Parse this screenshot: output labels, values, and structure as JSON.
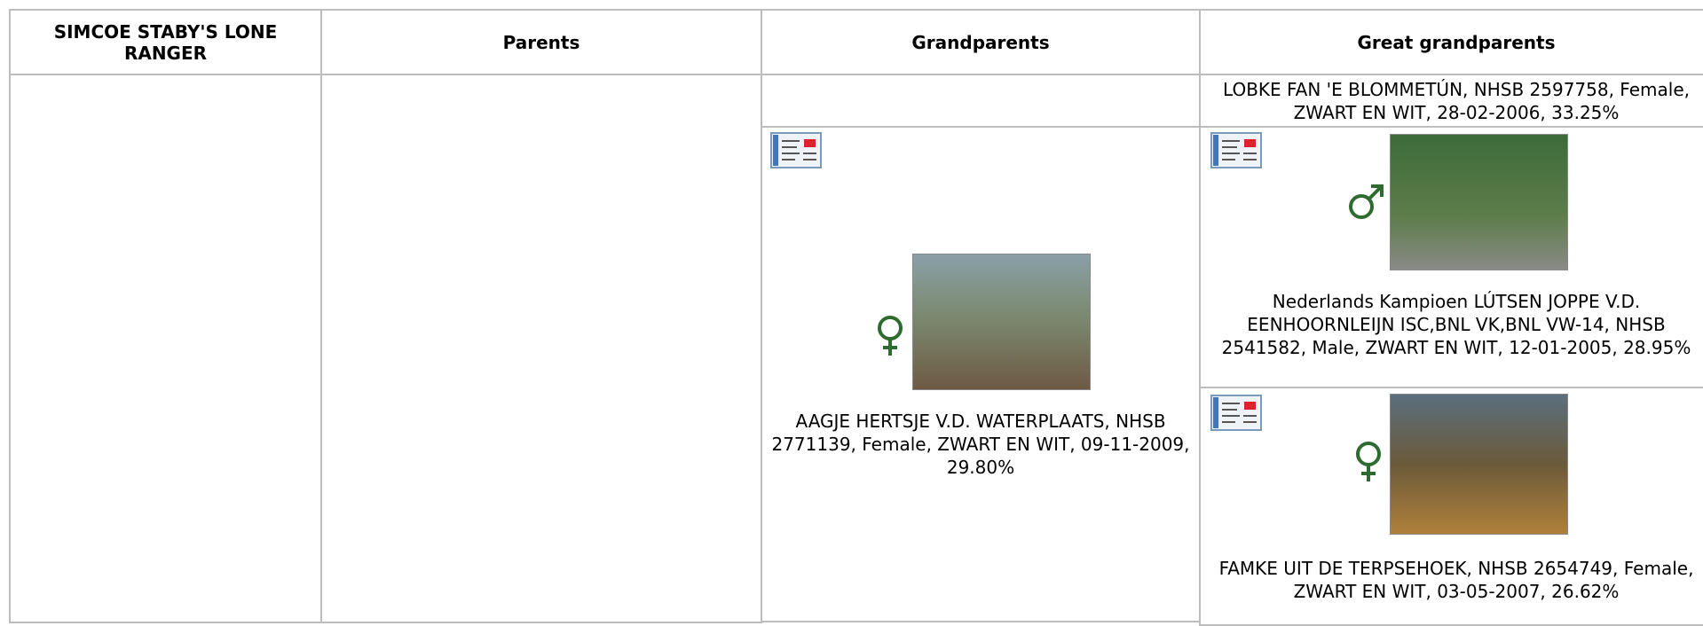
{
  "header": [
    "SIMCOE STABY'S LONE RANGER",
    "Parents",
    "Grandparents",
    "Great grandparents"
  ],
  "grandparents": [
    {
      "text": "AAGJE HERTSJE V.D. WATERPLAATS, NHSB 2771139, Female, ZWART EN WIT, 09-11-2009, 29.80%"
    }
  ],
  "great_grandparents": [
    {
      "text": "LOBKE FAN 'E BLOMMETÚN, NHSB 2597758, Female, ZWART EN WIT, 28-02-2006, 33.25%"
    },
    {
      "text": "Nederlands Kampioen LÚTSEN JOPPE V.D. EENHOORNLEIJN ISC,BNL VK,BNL VW-14, NHSB 2541582, Male, ZWART EN WIT, 12-01-2005, 28.95%"
    },
    {
      "text": "FAMKE UIT DE TERPSEHOEK, NHSB 2654749, Female, ZWART EN WIT, 03-05-2007, 26.62%"
    }
  ]
}
